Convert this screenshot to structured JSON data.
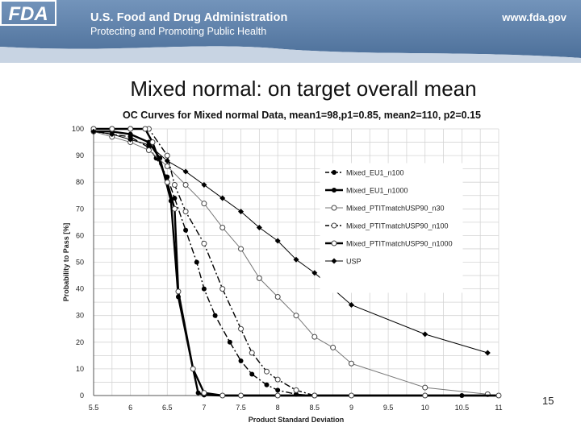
{
  "header": {
    "agency": "U.S. Food and Drug Administration",
    "tagline": "Protecting and Promoting Public Health",
    "website": "www.fda.gov",
    "logo_text": "FDA",
    "colors": {
      "banner": "#5c7fa8",
      "banner_light": "#9fb6cf"
    }
  },
  "slide": {
    "title": "Mixed normal: on target overall mean",
    "page_number": "15"
  },
  "chart_data": {
    "type": "line",
    "title": "OC Curves for Mixed normal Data, mean1=98,p1=0.85, mean2=110, p2=0.15",
    "xlabel": "Product Standard Deviation",
    "ylabel": "Probability to Pass  [%]",
    "xlim": [
      5.5,
      11
    ],
    "ylim": [
      0,
      100
    ],
    "xticks": [
      "5.5",
      "6",
      "6.5",
      "7",
      "7.5",
      "8",
      "8.5",
      "9",
      "9.5",
      "10",
      "10.5",
      "11"
    ],
    "yticks": [
      "0",
      "10",
      "20",
      "30",
      "40",
      "50",
      "60",
      "70",
      "80",
      "90",
      "100"
    ],
    "legend_position": "right",
    "series": [
      {
        "name": "Mixed_EU1_n100",
        "style": "dashdot",
        "marker": "filled",
        "x": [
          5.5,
          5.75,
          6.0,
          6.25,
          6.35,
          6.5,
          6.6,
          6.75,
          6.9,
          7.0,
          7.15,
          7.35,
          7.5,
          7.65,
          7.85,
          8.0,
          8.25,
          8.5
        ],
        "values": [
          99,
          98,
          97,
          93,
          89,
          82,
          74,
          62,
          50,
          40,
          30,
          20,
          13,
          8,
          4,
          2,
          0.5,
          0
        ]
      },
      {
        "name": "Mixed_EU1_n1000",
        "style": "solid-thick",
        "marker": "filled",
        "x": [
          5.5,
          5.75,
          6.0,
          6.25,
          6.4,
          6.55,
          6.65,
          6.85,
          6.92,
          7.0,
          7.25,
          7.5,
          8.0,
          9.0,
          10.0,
          10.5,
          11.0
        ],
        "values": [
          99,
          99,
          98,
          95,
          89,
          73,
          37,
          10,
          1,
          0.2,
          0,
          0,
          0,
          0,
          0,
          0,
          0
        ]
      },
      {
        "name": "Mixed_PTITmatchUSP90_n30",
        "style": "solid-thin",
        "marker": "hollow",
        "x": [
          5.5,
          5.75,
          6.0,
          6.25,
          6.5,
          6.75,
          7.0,
          7.25,
          7.5,
          7.75,
          8.0,
          8.25,
          8.5,
          8.75,
          9.0,
          10.0,
          10.85
        ],
        "values": [
          99,
          97,
          95,
          92,
          86,
          79,
          72,
          63,
          55,
          44,
          37,
          30,
          22,
          18,
          12,
          3,
          0.5
        ]
      },
      {
        "name": "Mixed_PTITmatchUSP90_n100",
        "style": "dashdot",
        "marker": "hollow",
        "x": [
          5.5,
          5.75,
          6.0,
          6.25,
          6.5,
          6.6,
          6.75,
          7.0,
          7.25,
          7.5,
          7.65,
          7.85,
          8.0,
          8.25,
          8.5
        ],
        "values": [
          100,
          100,
          100,
          100,
          90,
          79,
          69,
          57,
          40,
          25,
          16,
          9,
          6,
          2,
          0
        ]
      },
      {
        "name": "Mixed_PTITmatchUSP90_n1000",
        "style": "solid-thick",
        "marker": "hollow",
        "x": [
          5.5,
          5.75,
          6.0,
          6.2,
          6.3,
          6.5,
          6.6,
          6.65,
          6.85,
          7.0,
          7.25,
          7.5,
          8.0,
          8.5,
          9.0,
          10.0,
          11.0
        ],
        "values": [
          100,
          100,
          100,
          100,
          95,
          80,
          70,
          39,
          10,
          1,
          0,
          0,
          0,
          0,
          0,
          0,
          0
        ]
      },
      {
        "name": "USP",
        "style": "solid-thin",
        "marker": "filled-diamond",
        "x": [
          5.5,
          5.75,
          6.0,
          6.25,
          6.5,
          6.75,
          7.0,
          7.25,
          7.5,
          7.75,
          8.0,
          8.25,
          8.5,
          8.75,
          9.0,
          10.0,
          10.85
        ],
        "values": [
          99,
          98,
          96,
          94,
          88,
          84,
          79,
          74,
          69,
          63,
          58,
          51,
          46,
          40,
          34,
          23,
          16
        ]
      }
    ]
  }
}
